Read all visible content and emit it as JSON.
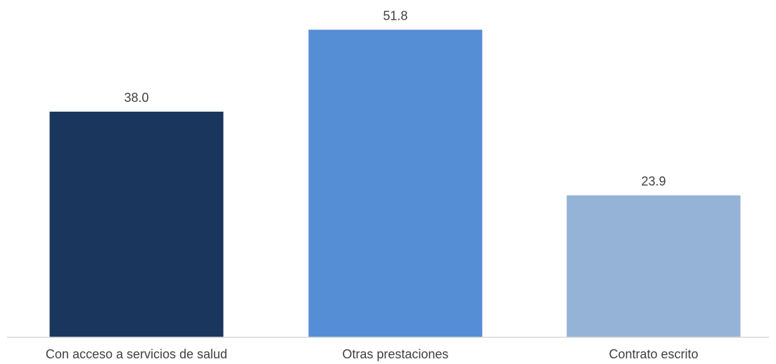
{
  "chart_data": {
    "type": "bar",
    "categories": [
      "Con acceso a servicios de salud",
      "Otras prestaciones",
      "Contrato escrito"
    ],
    "values": [
      38.0,
      51.8,
      23.9
    ],
    "value_labels": [
      "38.0",
      "51.8",
      "23.9"
    ],
    "colors": [
      "#1a365d",
      "#558ed5",
      "#95b3d7"
    ],
    "title": "",
    "xlabel": "",
    "ylabel": "",
    "ylim": [
      0,
      55
    ],
    "grid": false,
    "legend": "none"
  }
}
